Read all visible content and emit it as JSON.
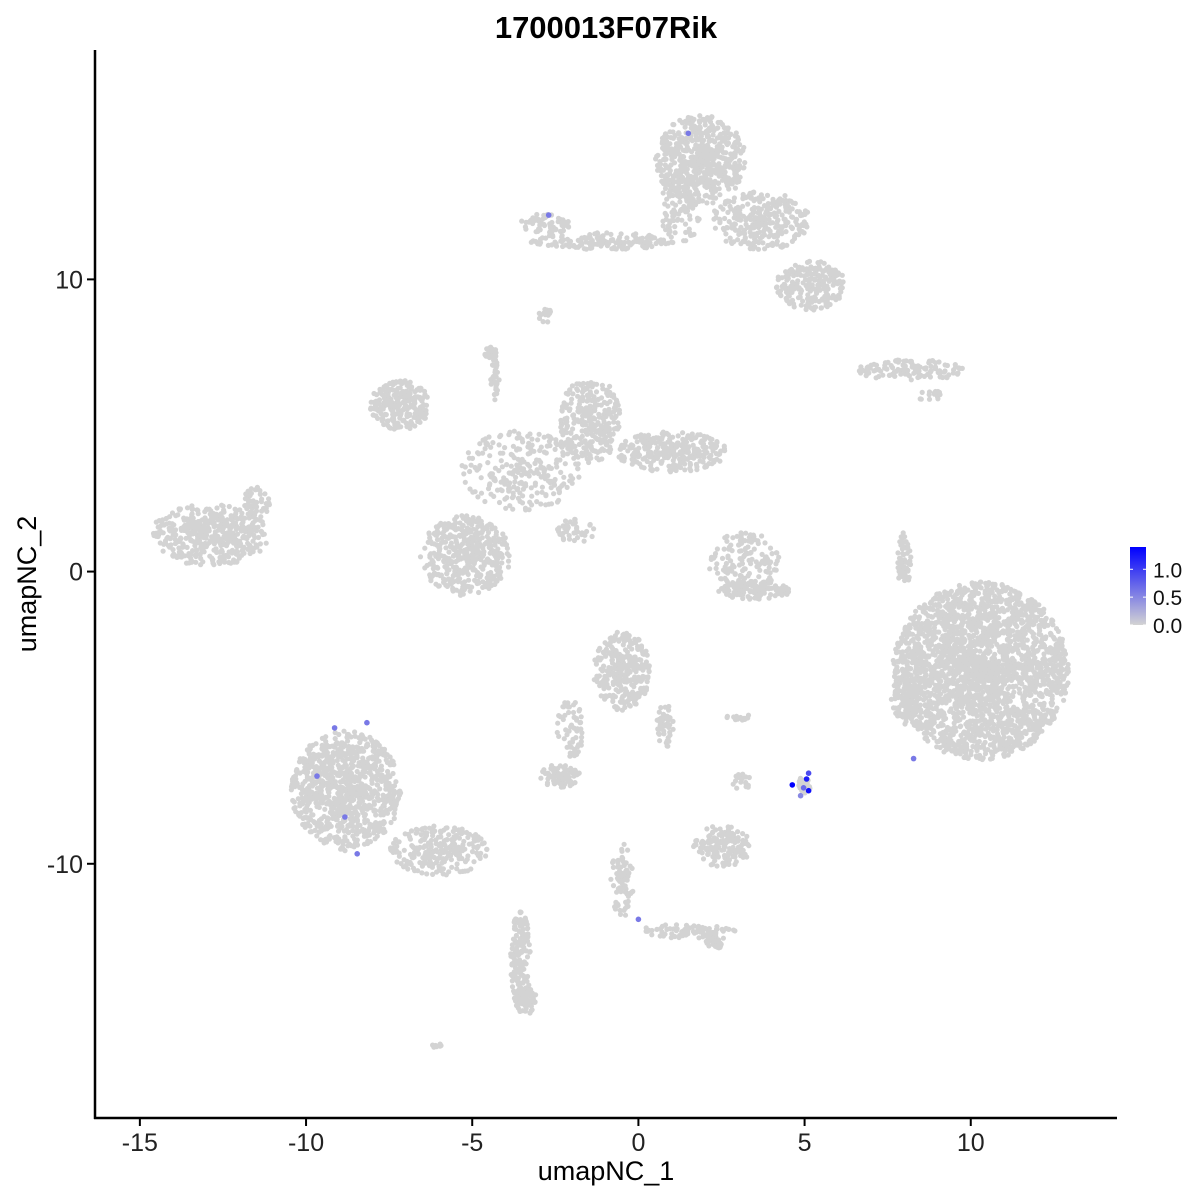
{
  "chart_data": {
    "type": "scatter",
    "title": "1700013F07Rik",
    "xlabel": "umapNC_1",
    "ylabel": "umapNC_2",
    "xlim": [
      -16.35,
      14.4
    ],
    "ylim": [
      -18.7,
      17.85
    ],
    "x_ticks": [
      -15,
      -10,
      -5,
      0,
      5,
      10
    ],
    "y_ticks": [
      -10,
      0,
      10
    ],
    "x_tick_labels": [
      "-15",
      "-10",
      "-5",
      "0",
      "5",
      "10"
    ],
    "y_tick_labels": [
      "-10",
      "0",
      "10"
    ],
    "grid": false,
    "color_scale": {
      "low": "#D3D3D3",
      "high": "#0000FF",
      "min": 0,
      "max": 1.4,
      "ticks": [
        1.0,
        0.5,
        0.0
      ],
      "tick_labels": [
        "1.0",
        "0.5",
        "0.0"
      ]
    },
    "legend": "right",
    "background_clusters": [
      {
        "cx": 1.87,
        "cy": 14.1,
        "rx": 1.36,
        "ry": 1.54,
        "n": 600
      },
      {
        "cx": 3.67,
        "cy": 12.0,
        "rx": 1.5,
        "ry": 1.0,
        "n": 300
      },
      {
        "cx": 5.2,
        "cy": 9.8,
        "rx": 1.05,
        "ry": 0.85,
        "n": 220
      },
      {
        "cx": -1.14,
        "cy": 11.3,
        "rx": 2.1,
        "ry": 0.3,
        "n": 150
      },
      {
        "cx": -2.8,
        "cy": 11.9,
        "rx": 0.75,
        "ry": 0.35,
        "n": 60
      },
      {
        "cx": 1.27,
        "cy": 12.4,
        "rx": 0.6,
        "ry": 1.3,
        "n": 100
      },
      {
        "cx": -2.8,
        "cy": 8.8,
        "rx": 0.2,
        "ry": 0.3,
        "n": 15
      },
      {
        "cx": 8.2,
        "cy": 6.9,
        "rx": 1.65,
        "ry": 0.35,
        "n": 120
      },
      {
        "cx": 8.8,
        "cy": 6.0,
        "rx": 0.4,
        "ry": 0.2,
        "n": 15
      },
      {
        "cx": -7.17,
        "cy": 5.7,
        "rx": 0.9,
        "ry": 0.85,
        "n": 250
      },
      {
        "cx": -5.2,
        "cy": 0.55,
        "rx": 1.36,
        "ry": 1.37,
        "n": 450
      },
      {
        "cx": -1.45,
        "cy": 5.2,
        "rx": 0.9,
        "ry": 1.5,
        "n": 300
      },
      {
        "cx": 1.0,
        "cy": 4.1,
        "rx": 1.65,
        "ry": 0.7,
        "n": 300
      },
      {
        "cx": -3.55,
        "cy": 3.45,
        "rx": 1.8,
        "ry": 1.37,
        "n": 250
      },
      {
        "cx": -4.3,
        "cy": 6.5,
        "rx": 0.15,
        "ry": 0.9,
        "n": 30
      },
      {
        "cx": -1.9,
        "cy": 1.4,
        "rx": 0.6,
        "ry": 0.4,
        "n": 40
      },
      {
        "cx": -4.45,
        "cy": 7.5,
        "rx": 0.2,
        "ry": 0.2,
        "n": 20
      },
      {
        "cx": -12.9,
        "cy": 1.25,
        "rx": 1.8,
        "ry": 1.05,
        "n": 450
      },
      {
        "cx": -11.5,
        "cy": 2.3,
        "rx": 0.4,
        "ry": 0.6,
        "n": 60
      },
      {
        "cx": 3.2,
        "cy": 0.35,
        "rx": 1.1,
        "ry": 1.0,
        "n": 150
      },
      {
        "cx": 3.5,
        "cy": -0.65,
        "rx": 1.1,
        "ry": 0.3,
        "n": 120
      },
      {
        "cx": 8.0,
        "cy": 0.35,
        "rx": 0.2,
        "ry": 1.0,
        "n": 60
      },
      {
        "cx": 10.3,
        "cy": -3.4,
        "rx": 2.65,
        "ry": 3.05,
        "n": 2500
      },
      {
        "cx": 8.0,
        "cy": -4.4,
        "rx": 0.4,
        "ry": 0.9,
        "n": 100
      },
      {
        "cx": -0.5,
        "cy": -3.4,
        "rx": 0.85,
        "ry": 1.35,
        "n": 300
      },
      {
        "cx": -2.05,
        "cy": -5.4,
        "rx": 0.4,
        "ry": 1.0,
        "n": 60
      },
      {
        "cx": -2.35,
        "cy": -7.0,
        "rx": 0.6,
        "ry": 0.4,
        "n": 80
      },
      {
        "cx": 0.8,
        "cy": -5.3,
        "rx": 0.25,
        "ry": 0.8,
        "n": 50
      },
      {
        "cx": -8.8,
        "cy": -7.5,
        "rx": 1.65,
        "ry": 2.05,
        "n": 900
      },
      {
        "cx": -6.0,
        "cy": -9.55,
        "rx": 1.5,
        "ry": 0.85,
        "n": 250
      },
      {
        "cx": -3.55,
        "cy": -13.3,
        "rx": 0.3,
        "ry": 1.7,
        "n": 150
      },
      {
        "cx": -3.4,
        "cy": -14.7,
        "rx": 0.35,
        "ry": 0.5,
        "n": 60
      },
      {
        "cx": -0.5,
        "cy": -10.6,
        "rx": 0.35,
        "ry": 1.3,
        "n": 80
      },
      {
        "cx": 1.57,
        "cy": -12.3,
        "rx": 1.5,
        "ry": 0.25,
        "n": 80
      },
      {
        "cx": 2.3,
        "cy": -12.6,
        "rx": 0.35,
        "ry": 0.3,
        "n": 40
      },
      {
        "cx": 2.5,
        "cy": -9.4,
        "rx": 0.9,
        "ry": 0.7,
        "n": 150
      },
      {
        "cx": 3.1,
        "cy": -7.2,
        "rx": 0.3,
        "ry": 0.3,
        "n": 20
      },
      {
        "cx": 3.1,
        "cy": -5.0,
        "rx": 0.5,
        "ry": 0.1,
        "n": 15
      },
      {
        "cx": 5.0,
        "cy": -7.3,
        "rx": 0.2,
        "ry": 0.3,
        "n": 20
      },
      {
        "cx": -6.05,
        "cy": -16.2,
        "rx": 0.2,
        "ry": 0.1,
        "n": 8
      }
    ],
    "expressing_points": [
      {
        "x": 1.5,
        "y": 15.0,
        "value": 0.6
      },
      {
        "x": -2.7,
        "y": 12.2,
        "value": 0.6
      },
      {
        "x": -9.14,
        "y": -5.35,
        "value": 0.6
      },
      {
        "x": -8.17,
        "y": -5.17,
        "value": 0.6
      },
      {
        "x": -9.67,
        "y": -7.0,
        "value": 0.6
      },
      {
        "x": -8.83,
        "y": -8.4,
        "value": 0.6
      },
      {
        "x": -8.46,
        "y": -9.66,
        "value": 0.6
      },
      {
        "x": 0.0,
        "y": -11.9,
        "value": 0.6
      },
      {
        "x": 8.28,
        "y": -6.4,
        "value": 0.6
      },
      {
        "x": 4.88,
        "y": -7.67,
        "value": 0.5
      },
      {
        "x": 4.97,
        "y": -7.4,
        "value": 0.7
      },
      {
        "x": 5.12,
        "y": -6.9,
        "value": 0.9
      },
      {
        "x": 5.06,
        "y": -7.1,
        "value": 1.2
      },
      {
        "x": 5.12,
        "y": -7.5,
        "value": 1.3
      },
      {
        "x": 4.63,
        "y": -7.3,
        "value": 1.4
      }
    ]
  }
}
